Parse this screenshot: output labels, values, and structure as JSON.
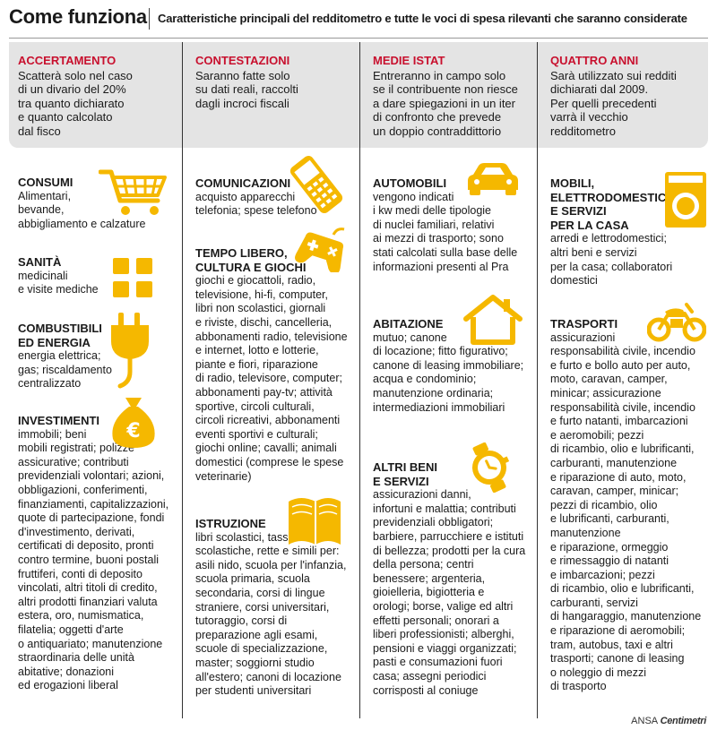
{
  "header": {
    "title": "Come funziona",
    "subtitle": "Caratteristiche principali del redditometro e tutte le voci di spesa rilevanti che saranno considerate"
  },
  "intro": [
    {
      "title": "ACCERTAMENTO",
      "text": [
        "Scatterà solo nel caso",
        "di un divario del 20%",
        "tra quanto dichiarato",
        "e quanto calcolato",
        "dal fisco"
      ]
    },
    {
      "title": "CONTESTAZIONI",
      "text": [
        "Saranno fatte solo",
        "su dati reali, raccolti",
        "dagli incroci fiscali"
      ]
    },
    {
      "title": "MEDIE ISTAT",
      "text": [
        "Entreranno in campo solo",
        "se il contribuente non riesce",
        "a dare spiegazioni in un iter",
        "di confronto che prevede",
        "un doppio contraddittorio"
      ]
    },
    {
      "title": "QUATTRO ANNI",
      "text": [
        "Sarà utilizzato sui redditi",
        "dichiarati dal 2009.",
        "Per quelli precedenti",
        "varrà il vecchio",
        "redditometro"
      ]
    }
  ],
  "sections": {
    "consumi": {
      "title": [
        "CONSUMI"
      ],
      "text": [
        "Alimentari,",
        "bevande,",
        "abbigliamento e calzature"
      ]
    },
    "sanita": {
      "title": [
        "SANITÀ"
      ],
      "text": [
        "medicinali",
        "e visite mediche"
      ]
    },
    "combustibili": {
      "title": [
        "COMBUSTIBILI",
        "ED ENERGIA"
      ],
      "text": [
        "energia elettrica;",
        "gas; riscaldamento",
        "centralizzato"
      ]
    },
    "investimenti": {
      "title": [
        "INVESTIMENTI"
      ],
      "text": [
        "immobili; beni",
        "mobili registrati; polizze",
        "assicurative; contributi",
        "previdenziali volontari; azioni,",
        "obbligazioni, conferimenti,",
        "finanziamenti, capitalizzazioni,",
        "quote di partecipazione, fondi",
        "d'investimento, derivati,",
        "certificati di deposito, pronti",
        "contro termine, buoni postali",
        "fruttiferi, conti di deposito",
        "vincolati, altri titoli di credito,",
        "altri prodotti finanziari valuta",
        "estera, oro, numismatica,",
        "filatelia; oggetti d'arte",
        "o antiquariato; manutenzione",
        "straordinaria delle unità",
        "abitative; donazioni",
        "ed erogazioni liberal"
      ]
    },
    "comunicazioni": {
      "title": [
        "COMUNICAZIONI"
      ],
      "text": [
        "acquisto apparecchi",
        "telefonia; spese telefono"
      ]
    },
    "tempo_libero": {
      "title": [
        "TEMPO LIBERO,",
        "CULTURA E GIOCHI"
      ],
      "text": [
        "giochi e giocattoli, radio,",
        "televisione, hi-fi, computer,",
        "libri non scolastici, giornali",
        "e riviste, dischi, cancelleria,",
        "abbonamenti radio, televisione",
        "e internet, lotto e lotterie,",
        "piante e fiori, riparazione",
        "di radio, televisore, computer;",
        "abbonamenti pay-tv; attività",
        "sportive, circoli culturali,",
        "circoli ricreativi, abbonamenti",
        "eventi sportivi e culturali;",
        "giochi online; cavalli; animali",
        "domestici (comprese le spese",
        "veterinarie)"
      ]
    },
    "istruzione": {
      "title": [
        "ISTRUZIONE"
      ],
      "text": [
        "libri scolastici, tasse",
        "scolastiche, rette e simili per:",
        "asili nido, scuola per l'infanzia,",
        "scuola primaria, scuola",
        "secondaria, corsi di lingue",
        "straniere, corsi universitari,",
        "tutoraggio, corsi di",
        "preparazione agli esami,",
        "scuole di specializzazione,",
        "master; soggiorni studio",
        "all'estero; canoni di locazione",
        "per studenti universitari"
      ]
    },
    "automobili": {
      "title": [
        "AUTOMOBILI"
      ],
      "text": [
        "vengono indicati",
        "i kw medi delle tipologie",
        "di nuclei familiari, relativi",
        "ai mezzi di trasporto; sono",
        "stati calcolati sulla base delle",
        "informazioni presenti al Pra"
      ]
    },
    "abitazione": {
      "title": [
        "ABITAZIONE"
      ],
      "text": [
        "mutuo; canone",
        "di locazione; fitto figurativo;",
        "canone di leasing immobiliare;",
        "acqua e condominio;",
        "manutenzione ordinaria;",
        "intermediazioni immobiliari"
      ]
    },
    "altri_beni": {
      "title": [
        "ALTRI BENI",
        "E SERVIZI"
      ],
      "text": [
        "assicurazioni danni,",
        "infortuni e malattia; contributi",
        "previdenziali obbligatori;",
        "barbiere, parrucchiere e istituti",
        "di bellezza; prodotti per la cura",
        "della persona; centri",
        "benessere; argenteria,",
        "gioielleria, bigiotteria e",
        "orologi; borse, valige ed altri",
        "effetti personali; onorari a",
        "liberi professionisti; alberghi,",
        "pensioni e viaggi organizzati;",
        "pasti e consumazioni fuori",
        "casa; assegni periodici",
        "corrisposti al coniuge"
      ]
    },
    "mobili": {
      "title": [
        "MOBILI,",
        "ELETTRODOMESTICI",
        "E SERVIZI",
        "PER LA CASA"
      ],
      "text": [
        "arredi e lettrodomestici;",
        "altri beni e servizi",
        "per la casa; collaboratori",
        "domestici"
      ]
    },
    "trasporti": {
      "title": [
        "TRASPORTI"
      ],
      "text": [
        "assicurazioni",
        "responsabilità civile, incendio",
        "e furto e bollo auto per auto,",
        "moto, caravan, camper,",
        "minicar; assicurazione",
        "responsabilità civile, incendio",
        "e furto natanti, imbarcazioni",
        "e aeromobili; pezzi",
        "di ricambio, olio e lubrificanti,",
        "carburanti, manutenzione",
        "e riparazione di auto, moto,",
        "caravan, camper, minicar;",
        "pezzi di ricambio, olio",
        "e lubrificanti, carburanti,",
        "manutenzione",
        "e riparazione, ormeggio",
        "e rimessaggio di natanti",
        "e imbarcazioni; pezzi",
        "di ricambio, olio e lubrificanti,",
        "carburanti, servizi",
        "di hangaraggio, manutenzione",
        "e riparazione di aeromobili;",
        "tram, autobus, taxi e altri",
        "trasporti; canone di leasing",
        "o noleggio di mezzi",
        "di trasporto"
      ]
    }
  },
  "footer": {
    "agency": "ANSA",
    "brand": "Centimetri"
  },
  "colors": {
    "accent": "#c8102e",
    "icon": "#f5b800",
    "band": "#e4e4e4"
  }
}
